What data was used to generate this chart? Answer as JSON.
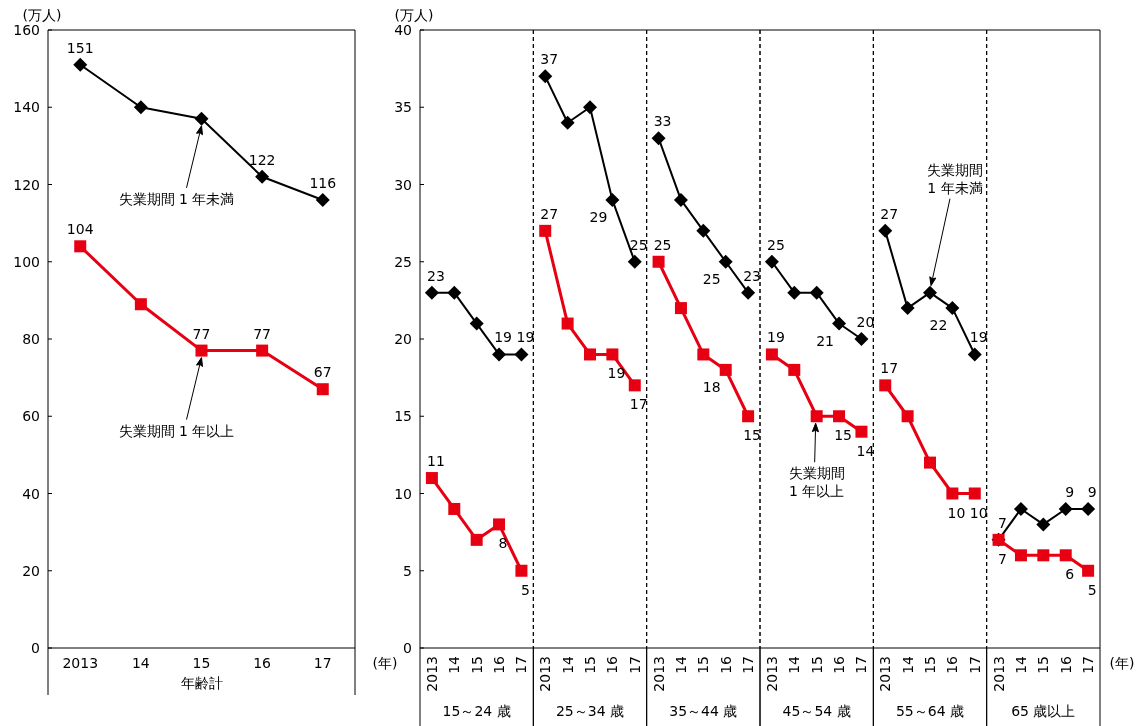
{
  "chart_data": [
    {
      "type": "line",
      "categories": [
        "2013",
        "14",
        "15",
        "16",
        "17"
      ],
      "xlabel": "年齢計",
      "ylabel": "(万人)",
      "ylim": [
        0,
        160
      ],
      "yticks": [
        0,
        20,
        40,
        60,
        80,
        100,
        120,
        140,
        160
      ],
      "annotations": [
        "(年)"
      ],
      "series": [
        {
          "name": "失業期間 1 年未満",
          "color": "#000000",
          "marker": "diamond",
          "values": [
            151,
            140,
            137,
            122,
            116
          ],
          "value_labels": [
            "151",
            null,
            null,
            "122",
            "116"
          ]
        },
        {
          "name": "失業期間 1 年以上",
          "color": "#e60012",
          "marker": "square",
          "values": [
            104,
            89,
            77,
            77,
            67
          ],
          "value_labels": [
            "104",
            null,
            "77",
            "77",
            "67"
          ]
        }
      ]
    },
    {
      "type": "line",
      "categories": [
        "2013",
        "14",
        "15",
        "16",
        "17"
      ],
      "xlabel": "15～24 歳",
      "ylabel": "(万人)",
      "ylim": [
        0,
        40
      ],
      "yticks": [
        0,
        5,
        10,
        15,
        20,
        25,
        30,
        35,
        40
      ],
      "series": [
        {
          "color": "#000000",
          "marker": "diamond",
          "values": [
            23,
            23,
            21,
            19,
            19
          ],
          "value_labels": [
            "23",
            null,
            null,
            "19",
            "19"
          ]
        },
        {
          "color": "#e60012",
          "marker": "square",
          "values": [
            11,
            9,
            7,
            8,
            5
          ],
          "value_labels": [
            "11",
            null,
            null,
            "8",
            "5"
          ]
        }
      ]
    },
    {
      "type": "line",
      "categories": [
        "2013",
        "14",
        "15",
        "16",
        "17"
      ],
      "xlabel": "25～34 歳",
      "ylim": [
        0,
        40
      ],
      "yticks": [
        0,
        5,
        10,
        15,
        20,
        25,
        30,
        35,
        40
      ],
      "tick_labels": "x",
      "series": [
        {
          "color": "#000000",
          "marker": "diamond",
          "values": [
            37,
            34,
            35,
            29,
            25
          ],
          "value_labels": [
            "37",
            null,
            null,
            "29",
            "25"
          ]
        },
        {
          "color": "#e60012",
          "marker": "square",
          "values": [
            27,
            21,
            19,
            19,
            17
          ],
          "value_labels": [
            "27",
            null,
            null,
            "19",
            "17"
          ]
        }
      ]
    },
    {
      "type": "line",
      "categories": [
        "2013",
        "14",
        "15",
        "16",
        "17"
      ],
      "xlabel": "35～44 歳",
      "ylim": [
        0,
        40
      ],
      "yticks": [
        0,
        5,
        10,
        15,
        20,
        25,
        30,
        35,
        40
      ],
      "tick_labels": "x",
      "series": [
        {
          "color": "#000000",
          "marker": "diamond",
          "values": [
            33,
            29,
            27,
            25,
            23
          ],
          "value_labels": [
            "33",
            null,
            null,
            "25",
            "23"
          ]
        },
        {
          "color": "#e60012",
          "marker": "square",
          "values": [
            25,
            22,
            19,
            18,
            15
          ],
          "value_labels": [
            "25",
            null,
            null,
            "18",
            "15"
          ]
        }
      ]
    },
    {
      "type": "line",
      "categories": [
        "2013",
        "14",
        "15",
        "16",
        "17"
      ],
      "xlabel": "45～54 歳",
      "ylim": [
        0,
        40
      ],
      "yticks": [
        0,
        5,
        10,
        15,
        20,
        25,
        30,
        35,
        40
      ],
      "tick_labels": "x",
      "series": [
        {
          "color": "#000000",
          "marker": "diamond",
          "values": [
            25,
            23,
            23,
            21,
            20
          ],
          "value_labels": [
            "25",
            null,
            null,
            "21",
            "20"
          ]
        },
        {
          "name": "失業期間\n1 年以上",
          "color": "#e60012",
          "marker": "square",
          "values": [
            19,
            18,
            15,
            15,
            14
          ],
          "value_labels": [
            "19",
            null,
            null,
            "15",
            "14"
          ]
        }
      ]
    },
    {
      "type": "line",
      "categories": [
        "2013",
        "14",
        "15",
        "16",
        "17"
      ],
      "xlabel": "55～64 歳",
      "ylim": [
        0,
        40
      ],
      "yticks": [
        0,
        5,
        10,
        15,
        20,
        25,
        30,
        35,
        40
      ],
      "tick_labels": "x",
      "series": [
        {
          "name": "失業期間\n1 年未満",
          "color": "#000000",
          "marker": "diamond",
          "values": [
            27,
            22,
            23,
            22,
            19
          ],
          "value_labels": [
            "27",
            null,
            null,
            "22",
            "19"
          ]
        },
        {
          "color": "#e60012",
          "marker": "square",
          "values": [
            17,
            15,
            12,
            10,
            10
          ],
          "value_labels": [
            "17",
            null,
            null,
            "10",
            "10"
          ]
        }
      ]
    },
    {
      "type": "line",
      "categories": [
        "2013",
        "14",
        "15",
        "16",
        "17"
      ],
      "xlabel": "65 歳以上",
      "ylim": [
        0,
        40
      ],
      "yticks": [
        0,
        5,
        10,
        15,
        20,
        25,
        30,
        35,
        40
      ],
      "tick_labels": "x",
      "annotations": [
        "(年)"
      ],
      "series": [
        {
          "color": "#000000",
          "marker": "diamond",
          "values": [
            7,
            9,
            8,
            9,
            9
          ],
          "value_labels": [
            "7",
            null,
            null,
            "9",
            "9"
          ]
        },
        {
          "color": "#e60012",
          "marker": "square",
          "values": [
            7,
            6,
            6,
            6,
            5
          ],
          "value_labels": [
            "7",
            null,
            null,
            "6",
            "5"
          ]
        }
      ]
    }
  ]
}
